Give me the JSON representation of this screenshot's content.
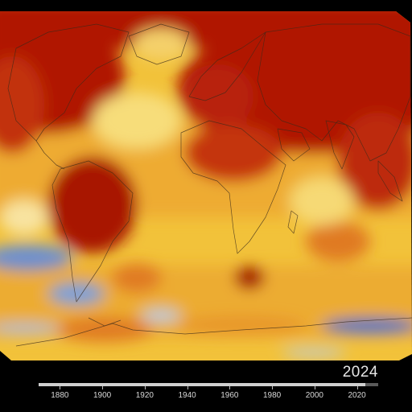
{
  "visualization": {
    "type": "global-temperature-anomaly-map",
    "color_scale": {
      "cold": "#4a74c8",
      "neutral": "#f5f0c8",
      "warm": "#f2c23a",
      "hot": "#e0701c",
      "very_hot": "#b01806"
    },
    "background": "#000000",
    "coastline_color": "#3a2a1a"
  },
  "timeline": {
    "current_year": "2024",
    "start_year": 1880,
    "end_year": 2024,
    "ticks": [
      "1880",
      "1900",
      "1920",
      "1940",
      "1960",
      "1980",
      "2000",
      "2020"
    ]
  }
}
